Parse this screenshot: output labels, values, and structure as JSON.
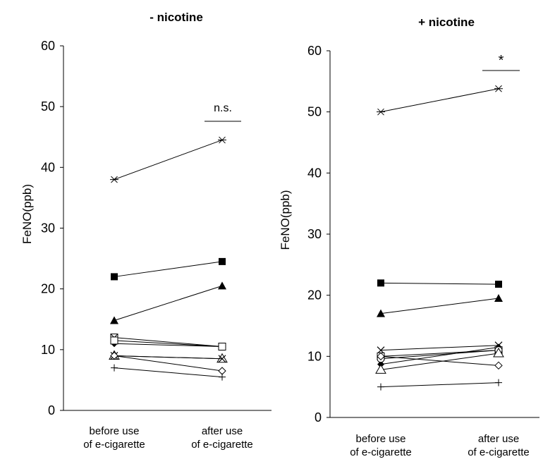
{
  "chart_data": [
    {
      "type": "line",
      "title": "- nicotine",
      "ylabel": "FeNO(ppb)",
      "ylim": [
        0,
        60
      ],
      "y_ticks": [
        "0",
        "10",
        "20",
        "30",
        "40",
        "50",
        "60"
      ],
      "categories": [
        [
          "before use",
          "of e-cigarette"
        ],
        [
          "after use",
          "of e-cigarette"
        ]
      ],
      "significance": "n.s.",
      "series": [
        {
          "marker": "star",
          "values": [
            38,
            44.5
          ]
        },
        {
          "marker": "square-filled",
          "values": [
            22,
            24.5
          ]
        },
        {
          "marker": "triangle-filled",
          "values": [
            14.8,
            20.5
          ]
        },
        {
          "marker": "square-x",
          "values": [
            12,
            10.5
          ]
        },
        {
          "marker": "diamond-filled",
          "values": [
            11,
            10.5
          ]
        },
        {
          "marker": "square-open",
          "values": [
            11.5,
            10.5
          ]
        },
        {
          "marker": "triangle-open",
          "values": [
            9,
            8.5
          ]
        },
        {
          "marker": "x",
          "values": [
            9,
            8.5
          ]
        },
        {
          "marker": "diamond-open",
          "values": [
            9,
            6.5
          ]
        },
        {
          "marker": "plus",
          "values": [
            7,
            5.5
          ]
        }
      ]
    },
    {
      "type": "line",
      "title": "+ nicotine",
      "ylabel": "FeNO(ppb)",
      "ylim": [
        0,
        60
      ],
      "y_ticks": [
        "0",
        "10",
        "20",
        "30",
        "40",
        "50",
        "60"
      ],
      "categories": [
        [
          "before use",
          "of e-cigarette"
        ],
        [
          "after use",
          "of e-cigarette"
        ]
      ],
      "significance": "*",
      "series": [
        {
          "marker": "star",
          "values": [
            50,
            53.8
          ]
        },
        {
          "marker": "square-filled",
          "values": [
            22,
            21.8
          ]
        },
        {
          "marker": "triangle-filled",
          "values": [
            17,
            19.5
          ]
        },
        {
          "marker": "x",
          "values": [
            11,
            11.8
          ]
        },
        {
          "marker": "diamond-filled",
          "values": [
            8.7,
            11.5
          ]
        },
        {
          "marker": "square-open",
          "values": [
            10,
            11
          ]
        },
        {
          "marker": "circle-open",
          "values": [
            9.6,
            11
          ]
        },
        {
          "marker": "triangle-open",
          "values": [
            7.8,
            10.5
          ]
        },
        {
          "marker": "diamond-open",
          "values": [
            10,
            8.5
          ]
        },
        {
          "marker": "plus",
          "values": [
            5,
            5.7
          ]
        }
      ]
    }
  ]
}
